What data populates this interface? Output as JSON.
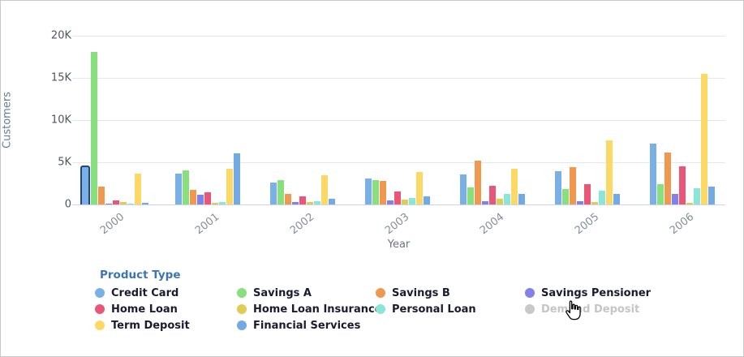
{
  "chart": {
    "y_axis_title": "Customers",
    "x_axis_title": "Year",
    "y_ticks": [
      "20K",
      "15K",
      "10K",
      "5K",
      "0"
    ]
  },
  "legend": {
    "title": "Product Type",
    "items": [
      {
        "label": "Credit Card",
        "color": "#79B1E7",
        "enabled": true
      },
      {
        "label": "Savings A",
        "color": "#87E07D",
        "enabled": true
      },
      {
        "label": "Savings B",
        "color": "#F0984F",
        "enabled": true
      },
      {
        "label": "Savings Pensioner",
        "color": "#8380EA",
        "enabled": true
      },
      {
        "label": "Home Loan",
        "color": "#EA5677",
        "enabled": true
      },
      {
        "label": "Home Loan Insurance",
        "color": "#DECC55",
        "enabled": true
      },
      {
        "label": "Personal Loan",
        "color": "#89E6D9",
        "enabled": true
      },
      {
        "label": "Demand Deposit",
        "color": "#C9C9C9",
        "enabled": false
      },
      {
        "label": "Term Deposit",
        "color": "#FCD964",
        "enabled": true
      },
      {
        "label": "Financial Services",
        "color": "#72AAE3",
        "enabled": true
      }
    ]
  },
  "chart_data": {
    "type": "bar",
    "title": "",
    "xlabel": "Year",
    "ylabel": "Customers",
    "ylim": [
      0,
      20000
    ],
    "grid": true,
    "legend_position": "bottom",
    "categories": [
      "2000",
      "2001",
      "2002",
      "2003",
      "2004",
      "2005",
      "2006"
    ],
    "series": [
      {
        "name": "Credit Card",
        "color": "#79B1E7",
        "values": [
          4400,
          3650,
          2550,
          3100,
          3550,
          3900,
          7200
        ],
        "highlight_index": 0
      },
      {
        "name": "Savings A",
        "color": "#87E07D",
        "values": [
          18100,
          4000,
          2900,
          2850,
          2000,
          1850,
          2450
        ]
      },
      {
        "name": "Savings B",
        "color": "#F0984F",
        "values": [
          2100,
          1750,
          1250,
          2750,
          5200,
          4400,
          6200
        ]
      },
      {
        "name": "Savings Pensioner",
        "color": "#8380EA",
        "values": [
          50,
          1150,
          300,
          450,
          400,
          400,
          1250
        ]
      },
      {
        "name": "Home Loan",
        "color": "#EA5677",
        "values": [
          450,
          1450,
          950,
          1500,
          2200,
          2400,
          4550
        ]
      },
      {
        "name": "Home Loan Insurance",
        "color": "#DECC55",
        "values": [
          300,
          150,
          250,
          550,
          650,
          300,
          150
        ]
      },
      {
        "name": "Personal Loan",
        "color": "#89E6D9",
        "values": [
          50,
          250,
          350,
          800,
          1250,
          1600,
          1900
        ]
      },
      {
        "name": "Term Deposit",
        "color": "#FCD964",
        "values": [
          3700,
          4200,
          3500,
          3800,
          4200,
          7600,
          15500
        ]
      },
      {
        "name": "Financial Services",
        "color": "#72AAE3",
        "values": [
          150,
          6100,
          650,
          950,
          1250,
          1250,
          2100
        ]
      }
    ],
    "disabled_series": [
      "Demand Deposit"
    ]
  }
}
